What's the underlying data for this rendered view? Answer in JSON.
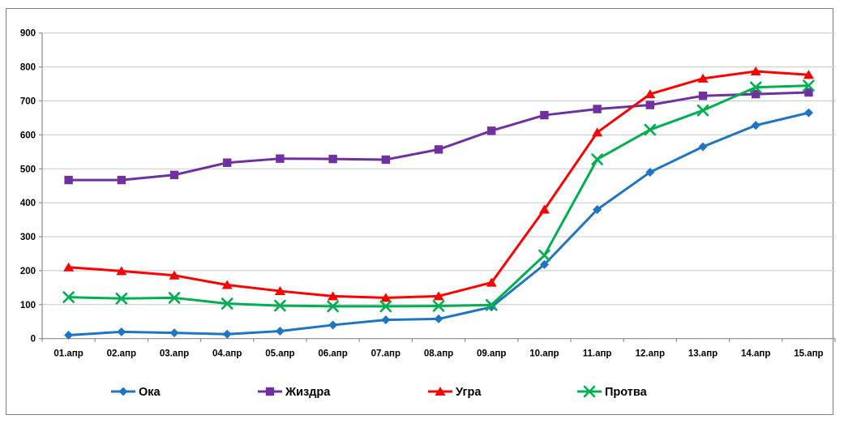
{
  "chart_data": {
    "type": "line",
    "title": "",
    "categories": [
      "01.апр",
      "02.апр",
      "03.апр",
      "04.апр",
      "05.апр",
      "06.апр",
      "07.апр",
      "08.апр",
      "09.апр",
      "10.апр",
      "11.апр",
      "12.апр",
      "13.апр",
      "14.апр",
      "15.апр"
    ],
    "series": [
      {
        "name": "Ока",
        "color": "#1F74C4",
        "marker": "diamond",
        "values": [
          10,
          20,
          17,
          13,
          22,
          40,
          55,
          58,
          93,
          218,
          380,
          490,
          565,
          628,
          665
        ]
      },
      {
        "name": "Жиздра",
        "color": "#7030A0",
        "marker": "square",
        "values": [
          467,
          467,
          482,
          518,
          530,
          529,
          527,
          557,
          612,
          658,
          676,
          688,
          715,
          720,
          725
        ]
      },
      {
        "name": "Угра",
        "color": "#FF0000",
        "marker": "triangle",
        "values": [
          210,
          199,
          186,
          158,
          140,
          125,
          120,
          125,
          165,
          380,
          607,
          720,
          766,
          787,
          777
        ]
      },
      {
        "name": "Протва",
        "color": "#00B050",
        "marker": "x",
        "values": [
          122,
          118,
          120,
          103,
          97,
          95,
          95,
          96,
          99,
          245,
          528,
          615,
          672,
          740,
          745
        ]
      }
    ],
    "ylim": [
      0,
      900
    ],
    "ytick_step": 100,
    "grid": "horizontal",
    "legend_position": "bottom",
    "xlabel": "",
    "ylabel": ""
  },
  "colors": {
    "background": "#FFFFFF",
    "chart_border": "#808080",
    "gridline": "#C9C9C9",
    "axis": "#8C8C8C",
    "text": "#000000"
  }
}
